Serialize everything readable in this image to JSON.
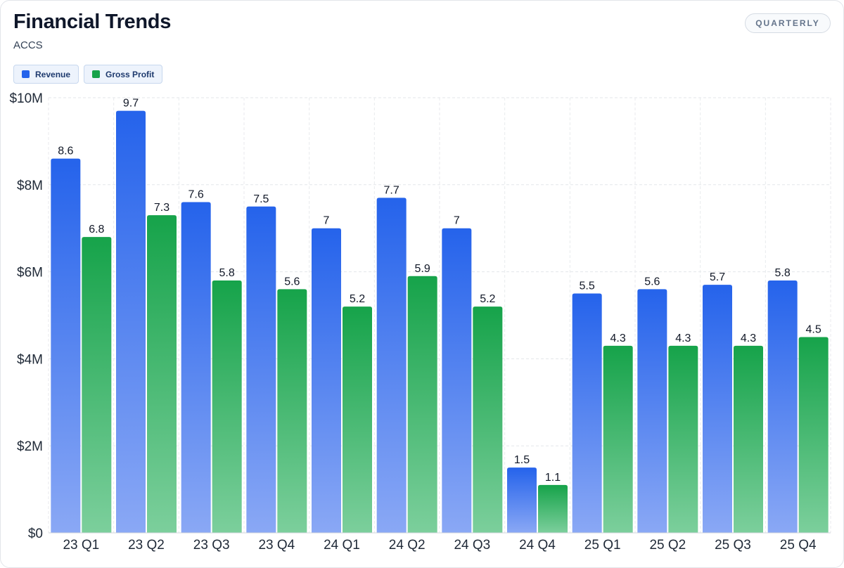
{
  "header": {
    "title": "Financial Trends",
    "subtitle": "ACCS",
    "period_label": "QUARTERLY"
  },
  "legend": [
    {
      "label": "Revenue",
      "color": "#2563eb"
    },
    {
      "label": "Gross Profit",
      "color": "#16a34a"
    }
  ],
  "chart_data": {
    "type": "bar",
    "categories": [
      "23 Q1",
      "23 Q2",
      "23 Q3",
      "23 Q4",
      "24 Q1",
      "24 Q2",
      "24 Q3",
      "24 Q4",
      "25 Q1",
      "25 Q2",
      "25 Q3",
      "25 Q4"
    ],
    "series": [
      {
        "name": "Revenue",
        "color": "#2563eb",
        "values": [
          8.6,
          9.7,
          7.6,
          7.5,
          7,
          7.7,
          7,
          1.5,
          5.5,
          5.6,
          5.7,
          5.8
        ]
      },
      {
        "name": "Gross Profit",
        "color": "#16a34a",
        "values": [
          6.8,
          7.3,
          5.8,
          5.6,
          5.2,
          5.9,
          5.2,
          1.1,
          4.3,
          4.3,
          4.3,
          4.5
        ]
      }
    ],
    "ylim": [
      0,
      10
    ],
    "yticks": [
      0,
      2,
      4,
      6,
      8,
      10
    ],
    "ytick_labels": [
      "$0",
      "$2M",
      "$4M",
      "$6M",
      "$8M",
      "$10M"
    ],
    "grid": true,
    "legend_position": "top-left"
  }
}
